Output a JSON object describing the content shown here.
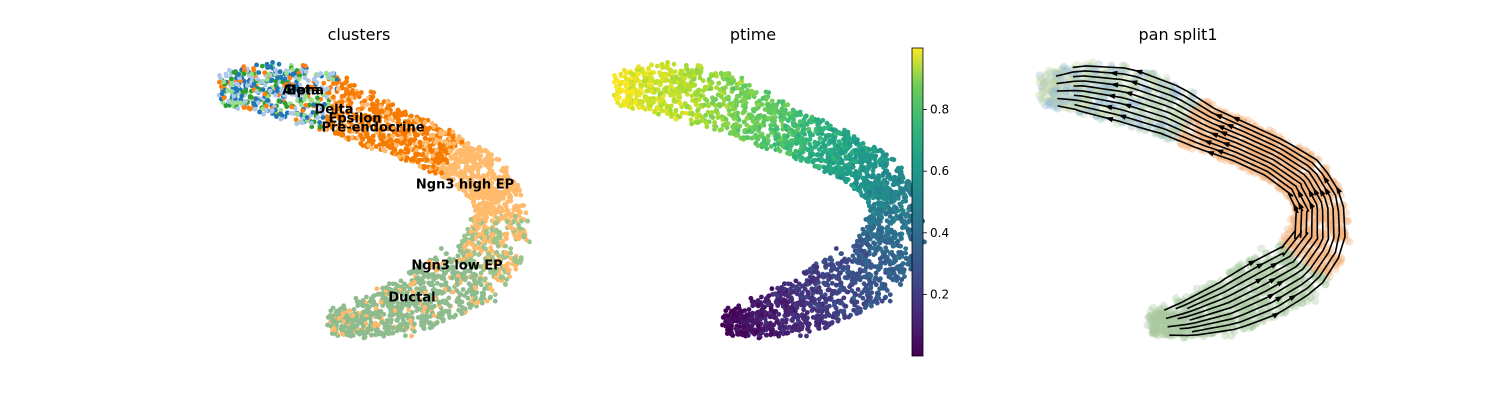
{
  "chart_data": [
    {
      "type": "scatter",
      "title": "clusters",
      "xlabel": "",
      "ylabel": "",
      "grid": false,
      "legend": "on data",
      "colors": {
        "Alpha": "#1f77b4",
        "Beta": "#aec7e8",
        "Delta": "#ff7f0e",
        "Epsilon": "#ffbb78",
        "Pre-endocrine": "#f57c00",
        "Ngn3 high EP": "#ffba6b",
        "Ngn3 low EP": "#9bc48d",
        "Ductal": "#8fbc8f"
      },
      "cluster_labels": [
        {
          "name": "Alpha",
          "x": 303,
          "y": 91
        },
        {
          "name": "Beta",
          "x": 303,
          "y": 91
        },
        {
          "name": "Delta",
          "x": 334,
          "y": 110
        },
        {
          "name": "Epsilon",
          "x": 355,
          "y": 119
        },
        {
          "name": "Pre-endocrine",
          "x": 373,
          "y": 128
        },
        {
          "name": "Ngn3 high EP",
          "x": 465,
          "y": 185
        },
        {
          "name": "Ngn3 low EP",
          "x": 457,
          "y": 266
        },
        {
          "name": "Ductal",
          "x": 412,
          "y": 298
        }
      ]
    },
    {
      "type": "scatter",
      "title": "ptime",
      "xlabel": "",
      "ylabel": "",
      "grid": false,
      "colorbar": {
        "ticks": [
          "0.2",
          "0.4",
          "0.6",
          "0.8"
        ],
        "tick_values": [
          0.2,
          0.4,
          0.6,
          0.8
        ],
        "range": [
          0,
          1
        ],
        "colormap": "viridis"
      }
    },
    {
      "type": "scatter",
      "title": "pan split1",
      "xlabel": "",
      "ylabel": "",
      "grid": false,
      "overlay": "streamlines"
    }
  ]
}
